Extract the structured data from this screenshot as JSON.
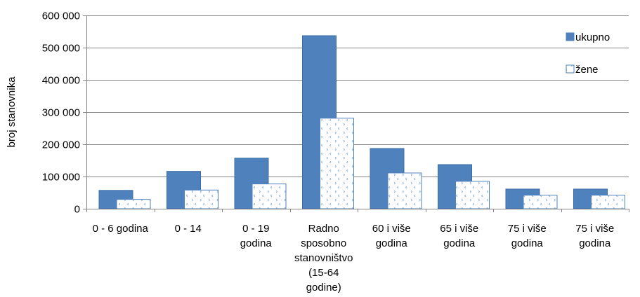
{
  "chart_data": {
    "type": "bar",
    "ylabel": "broj stanovnika",
    "ylim": [
      0,
      600000
    ],
    "yticks": [
      0,
      100000,
      200000,
      300000,
      400000,
      500000,
      600000
    ],
    "ytick_labels": [
      "0",
      "100 000",
      "200 000",
      "300 000",
      "400 000",
      "500 000",
      "600 000"
    ],
    "categories": [
      [
        "0 - 6 godina"
      ],
      [
        "0 - 14"
      ],
      [
        "0 - 19",
        "godina"
      ],
      [
        "Radno",
        "sposobno",
        "stanovništvo",
        "(15-64",
        "godine)"
      ],
      [
        "60 i više",
        "godina"
      ],
      [
        "65 i više",
        "godina"
      ],
      [
        "75 i više",
        "godina"
      ],
      [
        "75 i više",
        "godina"
      ]
    ],
    "series": [
      {
        "name": "ukupno",
        "color": "#4f81bd",
        "pattern": "solid",
        "values": [
          57000,
          116000,
          157000,
          537000,
          187000,
          137000,
          61000,
          61000
        ]
      },
      {
        "name": "žene",
        "color": "#4f81bd",
        "pattern": "dotted",
        "values": [
          29000,
          58000,
          77000,
          281000,
          111000,
          85000,
          42000,
          42000
        ]
      }
    ],
    "grid": true,
    "legend_position": "right"
  }
}
